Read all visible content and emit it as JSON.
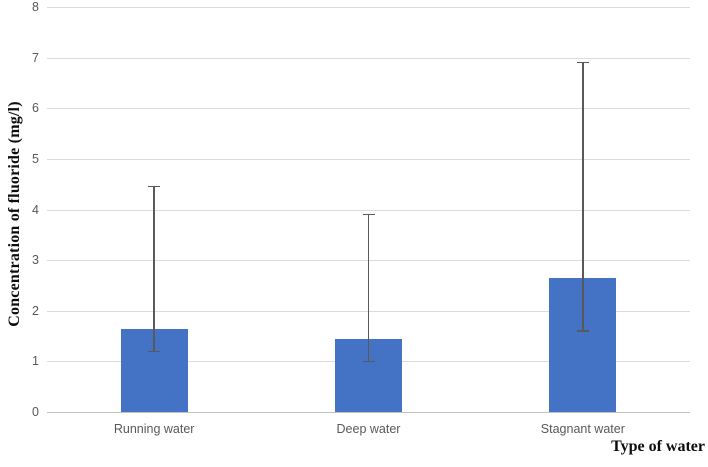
{
  "chart_data": {
    "type": "bar",
    "title": "",
    "categories": [
      "Running water",
      "Deep water",
      "Stagnant water"
    ],
    "values": [
      1.63,
      1.45,
      2.65
    ],
    "error_bars": {
      "upper_tips": [
        4.45,
        3.9,
        6.9
      ],
      "lower_tips": [
        1.2,
        1.0,
        1.6
      ]
    },
    "xlabel": "Type of water",
    "ylabel": "Concentration of fluoride (mg/l)",
    "ylim": [
      0,
      8
    ],
    "yticks": [
      0,
      1,
      2,
      3,
      4,
      5,
      6,
      7,
      8
    ],
    "grid": true,
    "legend": false,
    "colors": {
      "bar": "#4472C4",
      "gridline": "#DCDCDC",
      "axis_line": "#C3C3C3",
      "error_bar": "#595959",
      "tick_text": "#595959",
      "title_text": "#0d0d0d"
    }
  }
}
